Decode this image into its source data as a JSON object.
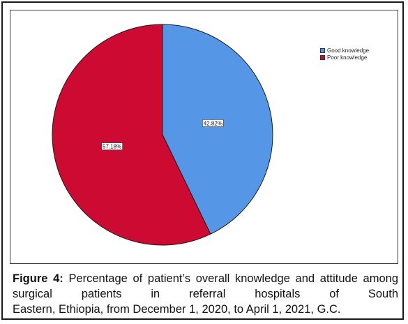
{
  "chart_data": {
    "type": "pie",
    "title": "",
    "slices": [
      {
        "label": "Good knowledge",
        "value": 42.82,
        "display": "42.82%",
        "color": "#5596e6"
      },
      {
        "label": "Poor knowledge",
        "value": 57.18,
        "display": "57.18%",
        "color": "#cc0a32"
      }
    ],
    "legend_position": "top-right"
  },
  "caption": {
    "label": "Figure 4:",
    "line1": "Percentage of patient’s overall knowledge and",
    "line2": "attitude among surgical patients in referral hospitals of South",
    "line3": "Eastern, Ethiopia, from December 1, 2020, to April 1, 2021, G.C."
  }
}
